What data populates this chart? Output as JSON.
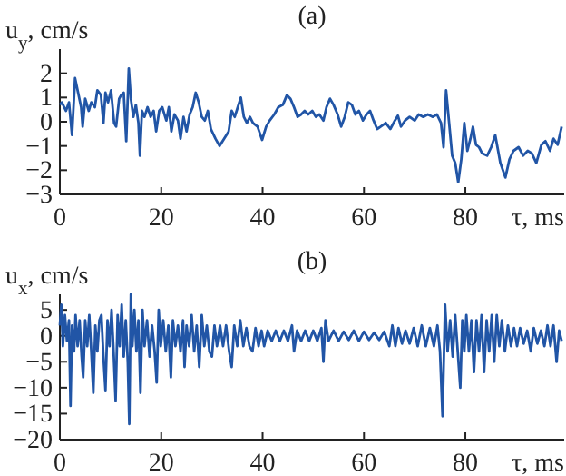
{
  "chart_data": [
    {
      "type": "line",
      "title": "(a)",
      "ylabel": "u$_{y}$, cm/s",
      "xlabel": "τ, ms",
      "xlim": [
        0,
        99.5
      ],
      "xticks": [
        0,
        20,
        40,
        60,
        80
      ],
      "ylim": [
        -3,
        3
      ],
      "yticks": [
        -3,
        -2,
        -1,
        0,
        1,
        2
      ],
      "series": [
        {
          "color": "#2155a6",
          "x": [
            0,
            0.4,
            1.2,
            1.8,
            2.4,
            3,
            3.6,
            4.2,
            4.5,
            5,
            5.7,
            6.2,
            6.9,
            7.4,
            8.1,
            8.6,
            9,
            9.5,
            10.1,
            10.7,
            11.1,
            11.7,
            12.1,
            12.6,
            13.1,
            13.6,
            14,
            14.5,
            15,
            15.5,
            15.8,
            16.2,
            16.7,
            17.3,
            17.9,
            18.5,
            19,
            19.6,
            20.2,
            21,
            21.5,
            22,
            22.6,
            23.3,
            23.8,
            24.4,
            25,
            25.6,
            26.2,
            26.8,
            27.4,
            28,
            28.6,
            29.2,
            29.8,
            30.7,
            31.5,
            32.4,
            33.3,
            33.9,
            34.5,
            35.1,
            35.7,
            36.3,
            36.9,
            37.5,
            38.1,
            39,
            39.9,
            40.7,
            41.4,
            42.3,
            43.1,
            44,
            44.8,
            45.5,
            46.2,
            46.9,
            47.6,
            48.3,
            49,
            49.8,
            50.5,
            51.2,
            52,
            52.6,
            53.3,
            54,
            54.8,
            55.5,
            56.2,
            56.9,
            57.6,
            58.3,
            59,
            59.8,
            60.5,
            61.2,
            61.9,
            62.6,
            63.3,
            64.3,
            65.2,
            66.1,
            66.7,
            67.3,
            68.1,
            69,
            70,
            70.8,
            71.7,
            72.6,
            73.6,
            74.4,
            75.2,
            75.7,
            76.2,
            76.8,
            77.4,
            78,
            78.6,
            79.2,
            79.8,
            80.4,
            81,
            81.5,
            82.1,
            82.7,
            83.3,
            84.3,
            85.1,
            85.9,
            86.9,
            87.9,
            88.7,
            89.5,
            90.5,
            91.4,
            92.3,
            93.1,
            94,
            95,
            95.8,
            96.7,
            97.4,
            98.2,
            99
          ],
          "values": [
            0.7,
            0.8,
            0.45,
            0.8,
            -0.55,
            1.8,
            1.2,
            0.6,
            -0.2,
            0.95,
            0.45,
            0.8,
            0.6,
            1.3,
            1.1,
            -0.05,
            1.2,
            0.8,
            1.3,
            -0.05,
            -0.2,
            0.95,
            1.1,
            1.2,
            -0.8,
            2.2,
            0.95,
            0.2,
            0.7,
            -0.05,
            -1.4,
            0.45,
            0.2,
            0.6,
            0.2,
            0.45,
            -0.4,
            0.45,
            0.6,
            0.05,
            0.6,
            -0.4,
            0.3,
            0.05,
            -0.7,
            0.2,
            -0.4,
            0.3,
            0.6,
            1.2,
            0.8,
            0.2,
            0.05,
            0.45,
            -0.3,
            -0.7,
            -1,
            -0.7,
            -0.4,
            0.45,
            0.2,
            0.6,
            1,
            0.2,
            -0.05,
            0.2,
            -0.05,
            -0.2,
            -0.75,
            -0.2,
            0.05,
            0.3,
            0.6,
            0.7,
            1.1,
            0.95,
            0.6,
            0.2,
            0.3,
            0.45,
            0.3,
            0.45,
            0.2,
            0.3,
            0.05,
            0.6,
            0.95,
            0.7,
            0.3,
            -0.2,
            0.2,
            0.8,
            0.7,
            0.3,
            0.45,
            0.05,
            0.3,
            0.45,
            0.05,
            -0.3,
            -0.2,
            -0.05,
            -0.3,
            0.05,
            0.25,
            -0.2,
            0.05,
            0.2,
            0.05,
            0.3,
            0.2,
            0.3,
            0.2,
            0.3,
            -0.05,
            -1.05,
            1.3,
            -0.05,
            -1.4,
            -1.7,
            -2.5,
            -1.55,
            -0.05,
            -1.2,
            -0.7,
            -0.2,
            -0.95,
            -1.05,
            -1.3,
            -1.4,
            -1.05,
            -0.55,
            -1.7,
            -2.3,
            -1.55,
            -1.2,
            -1.05,
            -1.4,
            -1.2,
            -1.3,
            -1.7,
            -0.95,
            -0.8,
            -1.2,
            -0.7,
            -0.95,
            -0.2
          ]
        }
      ]
    },
    {
      "type": "line",
      "title": "(b)",
      "ylabel": "u$_{x}$, cm/s",
      "xlabel": "τ, ms",
      "xlim": [
        0,
        99.5
      ],
      "xticks": [
        0,
        20,
        40,
        60,
        80
      ],
      "ylim": [
        -20,
        8
      ],
      "yticks": [
        -20,
        -15,
        -10,
        -5,
        0,
        5
      ],
      "series": [
        {
          "color": "#2155a6",
          "x": [
            0,
            0.3,
            0.6,
            1,
            1.4,
            1.8,
            2.1,
            2.4,
            2.8,
            3.1,
            3.5,
            3.9,
            4.3,
            4.6,
            5,
            5.4,
            5.8,
            6.2,
            6.6,
            7,
            7.4,
            7.8,
            8.2,
            8.6,
            9,
            9.4,
            9.8,
            10.2,
            10.6,
            11,
            11.4,
            11.8,
            12.2,
            12.6,
            13,
            13.4,
            13.7,
            14,
            14.3,
            14.7,
            15.1,
            15.5,
            15.9,
            16.3,
            16.7,
            17.2,
            17.7,
            18.2,
            18.7,
            19.1,
            19.5,
            19.9,
            20.4,
            20.9,
            21.4,
            21.9,
            22.3,
            22.8,
            23.3,
            23.8,
            24.3,
            24.6,
            25,
            25.5,
            26,
            26.5,
            27,
            27.5,
            28,
            28.5,
            29,
            29.5,
            30,
            30.5,
            31,
            31.6,
            32.2,
            32.8,
            33.4,
            33.9,
            34.4,
            35,
            35.6,
            36.2,
            36.8,
            37.4,
            38,
            38.6,
            39.2,
            39.8,
            40.3,
            41,
            41.8,
            42.6,
            43.4,
            44.2,
            45,
            45.8,
            46.2,
            46.8,
            47.6,
            48.4,
            49.2,
            50,
            50.8,
            51.6,
            52,
            52.4,
            53,
            54,
            55,
            56,
            57,
            58,
            59,
            60,
            61,
            62,
            63,
            64,
            65,
            65.6,
            66.2,
            66.8,
            67.5,
            68.2,
            69,
            69.8,
            70.6,
            71.4,
            72.2,
            73,
            73.8,
            74.5,
            75,
            75.5,
            76,
            76.5,
            77,
            77.5,
            78,
            78.5,
            79,
            79.4,
            79.8,
            80.2,
            80.7,
            81.2,
            81.7,
            82.2,
            82.7,
            83.2,
            83.7,
            84.2,
            84.7,
            85.2,
            85.7,
            86.2,
            86.7,
            87.2,
            87.8,
            88.4,
            89,
            89.6,
            90.2,
            90.8,
            91.5,
            92.2,
            92.9,
            93.5,
            94.2,
            94.9,
            95.6,
            96.2,
            96.8,
            97.4,
            98,
            98.5,
            99
          ],
          "values": [
            2,
            6,
            -2,
            4,
            -1,
            3,
            -13.5,
            2,
            -3,
            4,
            -2,
            3,
            -4,
            -8,
            3,
            -2,
            4,
            -3,
            -11,
            2,
            -3,
            3,
            4,
            -4,
            -10.5,
            3,
            -2,
            5,
            -3,
            -12.5,
            4,
            -2,
            6,
            -4,
            3,
            -5,
            -17,
            8,
            -2,
            5,
            -3,
            3,
            -11,
            5,
            -2,
            3,
            -4,
            2,
            -3,
            -9,
            5,
            -2,
            3,
            -3,
            2,
            -8,
            3,
            -2,
            2,
            -3,
            3,
            -6,
            2,
            -2,
            4,
            -3,
            2,
            -6,
            4,
            -2,
            2,
            -3,
            -4,
            2,
            -2,
            2,
            -2,
            2,
            -3,
            -6,
            2,
            -2,
            3,
            -2,
            1.5,
            -2,
            -3,
            1.5,
            -2,
            1,
            -2,
            1,
            -1,
            1,
            -1,
            1,
            -1,
            2,
            -3,
            1,
            -1,
            1,
            -1,
            1,
            -1,
            1.5,
            -5,
            3,
            -1,
            1,
            -1,
            0.8,
            -0.8,
            1,
            -1,
            0.8,
            -0.8,
            0.6,
            -0.8,
            0.8,
            -2,
            2,
            -2,
            1.5,
            -1.5,
            1,
            -1.5,
            1.5,
            -2,
            2,
            -2,
            1.5,
            -2,
            2,
            -3,
            -15.5,
            6,
            -3,
            3,
            -4,
            4,
            -3,
            -10,
            3,
            -3,
            4,
            -3,
            3,
            -7,
            3,
            -3,
            4,
            -7,
            3,
            -3,
            4,
            -5,
            4,
            -2,
            3,
            -3,
            2,
            -2,
            1.5,
            -2,
            1.5,
            -1.5,
            1,
            -3,
            1.5,
            -1.5,
            1,
            -2,
            2,
            -2,
            2,
            -5,
            1,
            -1
          ]
        }
      ]
    }
  ]
}
